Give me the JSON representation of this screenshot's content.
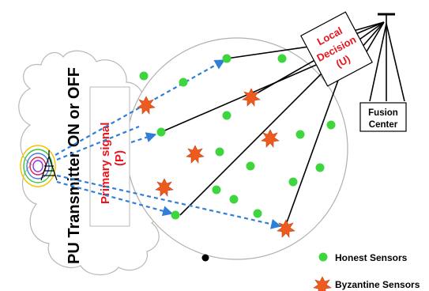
{
  "labels": {
    "pu_transmitter": "PU Transmitter ON or OFF",
    "primary_signal_line1": "Primary signal",
    "primary_signal_line2": "(P)",
    "local_decision_line1": "Local",
    "local_decision_line2": "Decision",
    "local_decision_line3": "(U)",
    "fusion_center_line1": "Fusion",
    "fusion_center_line2": "Center",
    "legend_honest": "Honest Sensors",
    "legend_byzantine": "Byzantine Sensors"
  },
  "colors": {
    "honest": "#3ed63e",
    "byzantine": "#ef5a1e",
    "signal_arrow": "#2f7fd6",
    "label_red": "#e8141c",
    "outline": "#000000"
  }
}
